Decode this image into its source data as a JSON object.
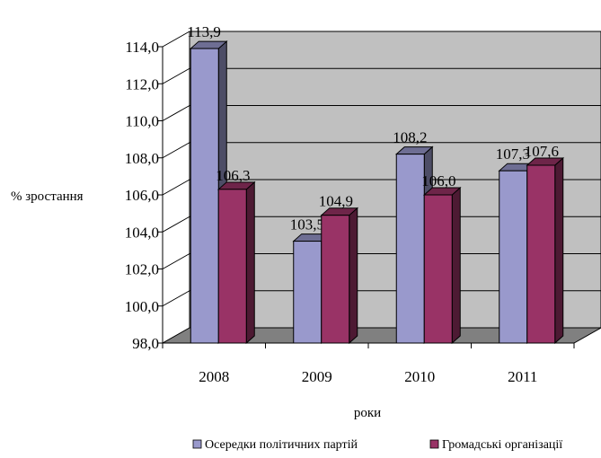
{
  "chart_data": {
    "type": "bar",
    "title": "",
    "xlabel": "роки",
    "ylabel": "% зростання",
    "ylim": [
      98.0,
      114.0
    ],
    "ystep": 2.0,
    "yticks": [
      "98,0",
      "100,0",
      "102,0",
      "104,0",
      "106,0",
      "108,0",
      "110,0",
      "112,0",
      "114,0"
    ],
    "categories": [
      "2008",
      "2009",
      "2010",
      "2011"
    ],
    "grid": true,
    "legend_position": "bottom",
    "series": [
      {
        "name": "Осередки політичних партій",
        "values": [
          113.9,
          103.5,
          108.2,
          107.3
        ],
        "labels": [
          "113,9",
          "103,5",
          "108,2",
          "107,3"
        ],
        "color": "#9999cc"
      },
      {
        "name": "Громадські організації",
        "values": [
          106.3,
          104.9,
          106.0,
          107.6
        ],
        "labels": [
          "106,3",
          "104,9",
          "106,0",
          "107,6"
        ],
        "color": "#993366"
      }
    ]
  }
}
